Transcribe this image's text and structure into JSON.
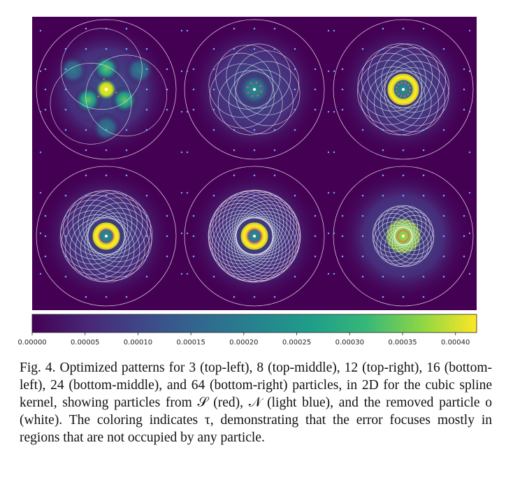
{
  "figure": {
    "panels": [
      {
        "label": "3",
        "position": "top-left"
      },
      {
        "label": "8",
        "position": "top-middle"
      },
      {
        "label": "12",
        "position": "top-right"
      },
      {
        "label": "16",
        "position": "bottom-left"
      },
      {
        "label": "24",
        "position": "bottom-middle"
      },
      {
        "label": "64",
        "position": "bottom-right"
      }
    ],
    "colormap": "viridis",
    "background_color": "#440154",
    "ring_color": "#ffffff",
    "neighbor_color": "#6fa8ff"
  },
  "chart_data": {
    "type": "heatmap",
    "colorbar": {
      "min": 0.0,
      "max": 0.00042,
      "ticks": [
        "0.00000",
        "0.00005",
        "0.00010",
        "0.00015",
        "0.00020",
        "0.00025",
        "0.00030",
        "0.00035",
        "0.00040"
      ],
      "tick_values": [
        0,
        5e-05,
        0.0001,
        0.00015,
        0.0002,
        0.00025,
        0.0003,
        0.00035,
        0.0004
      ]
    }
  },
  "caption": {
    "text": "Fig. 4.  Optimized patterns for 3 (top-left), 8 (top-middle), 12 (top-right), 16 (bottom-left), 24 (bottom-middle), and 64 (bottom-right) particles, in 2D for the cubic spline kernel, showing particles from 𝒮 (red), 𝒩 (light blue), and the removed particle o (white). The coloring indicates τ, demonstrating that the error focuses mostly in regions that are not occupied by any particle."
  }
}
